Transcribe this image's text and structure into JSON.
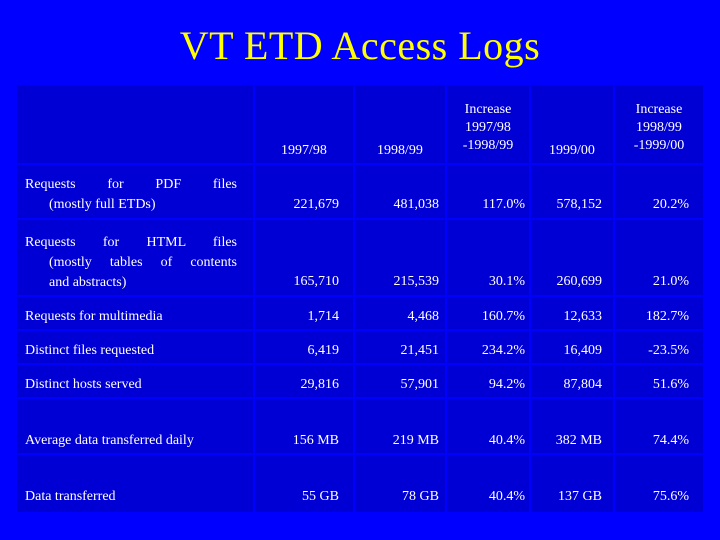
{
  "title": "VT  ETD Access Logs",
  "colors": {
    "background": "#0000ff",
    "table": "#0000d4",
    "title": "#ffff00",
    "text": "#ffffff"
  },
  "columns": [
    "1997/98",
    "1998/99",
    "Increase\n1997/98\n-1998/99",
    "1999/00",
    "Increase\n1998/99\n-1999/00"
  ],
  "rows": [
    {
      "label_lines": [
        "Requests for PDF files",
        "(mostly full ETDs)"
      ],
      "values": [
        "221,679",
        "481,038",
        "117.0%",
        "578,152",
        "20.2%"
      ]
    },
    {
      "label_lines": [
        "Requests for HTML files",
        "(mostly tables of contents",
        "and abstracts)"
      ],
      "values": [
        "165,710",
        "215,539",
        "30.1%",
        "260,699",
        "21.0%"
      ]
    },
    {
      "label_lines": [
        "Requests for multimedia"
      ],
      "values": [
        "1,714",
        "4,468",
        "160.7%",
        "12,633",
        "182.7%"
      ]
    },
    {
      "label_lines": [
        "Distinct files requested"
      ],
      "values": [
        "6,419",
        "21,451",
        "234.2%",
        "16,409",
        "-23.5%"
      ]
    },
    {
      "label_lines": [
        "Distinct hosts served"
      ],
      "values": [
        "29,816",
        "57,901",
        "94.2%",
        "87,804",
        "51.6%"
      ]
    },
    {
      "label_lines": [
        "Average data transferred daily"
      ],
      "values": [
        "156 MB",
        "219 MB",
        "40.4%",
        "382 MB",
        "74.4%"
      ]
    },
    {
      "label_lines": [
        "Data transferred"
      ],
      "values": [
        "55 GB",
        "78 GB",
        "40.4%",
        "137 GB",
        "75.6%"
      ]
    }
  ]
}
